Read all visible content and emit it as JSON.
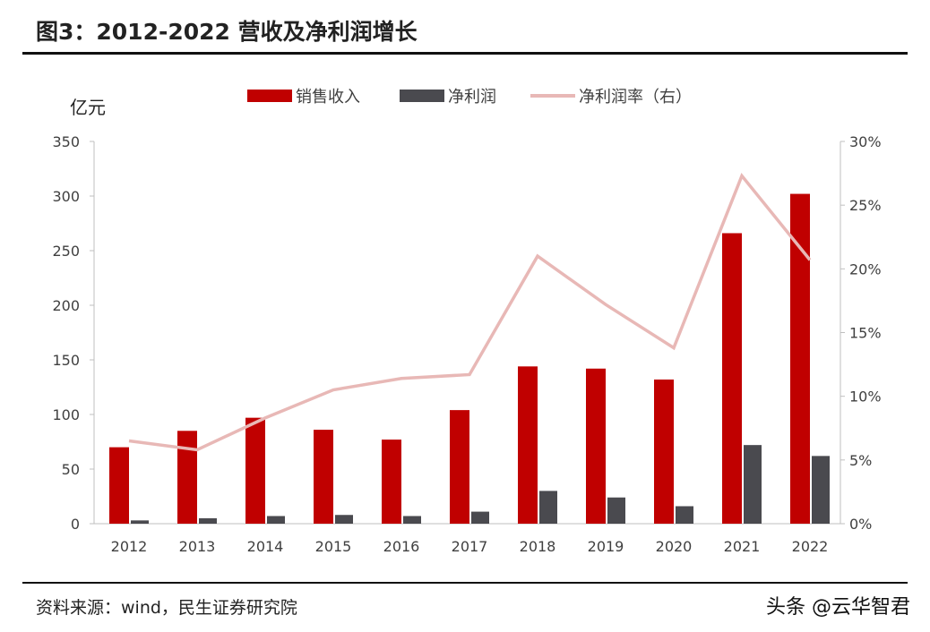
{
  "title": "图3：2012-2022 营收及净利润增长",
  "source": "资料来源：wind，民生证券研究院",
  "watermark": "头条 @云华智君",
  "chart_data": {
    "type": "bar",
    "title": "图3：2012-2022 营收及净利润增长",
    "ylabel": "亿元",
    "categories": [
      "2012",
      "2013",
      "2014",
      "2015",
      "2016",
      "2017",
      "2018",
      "2019",
      "2020",
      "2021",
      "2022"
    ],
    "ylim": [
      0,
      350
    ],
    "yticks": [
      "0",
      "50",
      "100",
      "150",
      "200",
      "250",
      "300",
      "350"
    ],
    "y2lim": [
      0,
      30
    ],
    "y2ticks": [
      "0%",
      "5%",
      "10%",
      "15%",
      "20%",
      "25%",
      "30%"
    ],
    "legend_position": "top",
    "grid": false,
    "series": [
      {
        "name": "销售收入",
        "type": "bar",
        "axis": "left",
        "color": "#c00000",
        "values": [
          70,
          85,
          97,
          86,
          77,
          104,
          144,
          142,
          132,
          266,
          302
        ]
      },
      {
        "name": "净利润",
        "type": "bar",
        "axis": "left",
        "color": "#4a4a4f",
        "values": [
          3,
          5,
          7,
          8,
          7,
          11,
          30,
          24,
          16,
          72,
          62
        ]
      },
      {
        "name": "净利润率（右）",
        "type": "line",
        "axis": "right",
        "color": "#e8b8b6",
        "values": [
          6.5,
          5.8,
          8.3,
          10.5,
          11.4,
          11.7,
          21.0,
          17.2,
          13.8,
          27.3,
          20.7
        ]
      }
    ]
  }
}
